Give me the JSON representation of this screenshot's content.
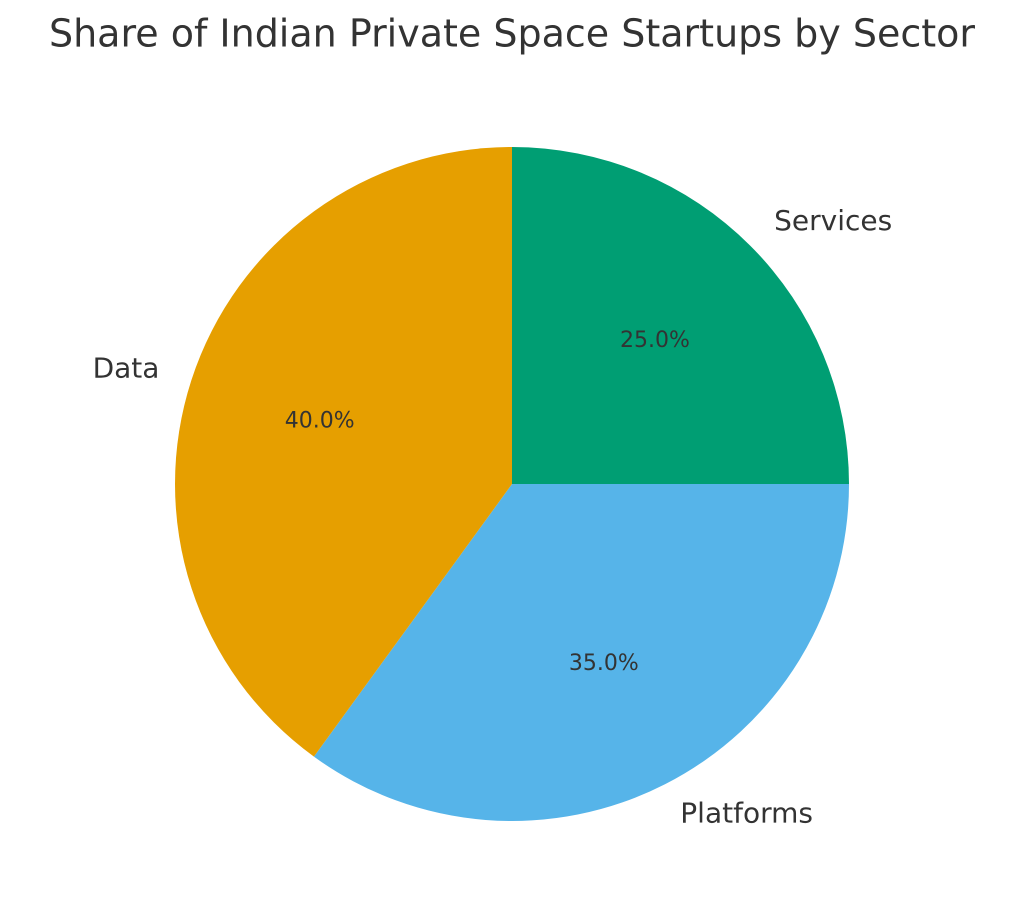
{
  "chart_data": {
    "type": "pie",
    "title": "Share of Indian Private Space Startups by Sector",
    "categories": [
      "Services",
      "Platforms",
      "Data"
    ],
    "values": [
      25,
      35,
      40
    ],
    "value_labels": [
      "25.0%",
      "35.0%",
      "40.0%"
    ],
    "colors": [
      "#009E73",
      "#56B4E9",
      "#E69F00"
    ]
  }
}
